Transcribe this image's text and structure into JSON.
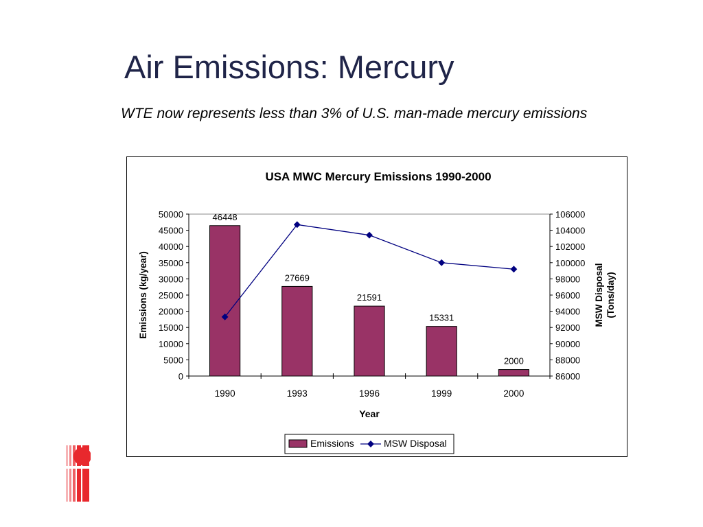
{
  "slide": {
    "title": "Air Emissions: Mercury",
    "subtitle": "WTE now represents less than 3% of U.S. man-made mercury emissions"
  },
  "chart_data": {
    "type": "bar",
    "title": "USA MWC Mercury Emissions 1990-2000",
    "xlabel": "Year",
    "ylabel": "Emissions (kg/year)",
    "y2label": [
      "MSW Disposal",
      "(Tons/day)"
    ],
    "categories": [
      "1990",
      "1993",
      "1996",
      "1999",
      "2000"
    ],
    "series": [
      {
        "name": "Emissions",
        "kind": "bar",
        "axis": "left",
        "values": [
          46448,
          27669,
          21591,
          15331,
          2000
        ],
        "data_labels": [
          "46448",
          "27669",
          "21591",
          "15331",
          "2000"
        ],
        "color": "#993366"
      },
      {
        "name": "MSW Disposal",
        "kind": "line",
        "axis": "right",
        "values": [
          93300,
          104700,
          103400,
          100000,
          99200
        ],
        "color": "#000080"
      }
    ],
    "ylim": [
      0,
      50000
    ],
    "yticks": [
      "0",
      "5000",
      "10000",
      "15000",
      "20000",
      "25000",
      "30000",
      "35000",
      "40000",
      "45000",
      "50000"
    ],
    "y2lim": [
      86000,
      106000
    ],
    "y2ticks": [
      "86000",
      "88000",
      "90000",
      "92000",
      "94000",
      "96000",
      "98000",
      "100000",
      "102000",
      "104000",
      "106000"
    ],
    "grid": false,
    "legend": "bottom"
  }
}
